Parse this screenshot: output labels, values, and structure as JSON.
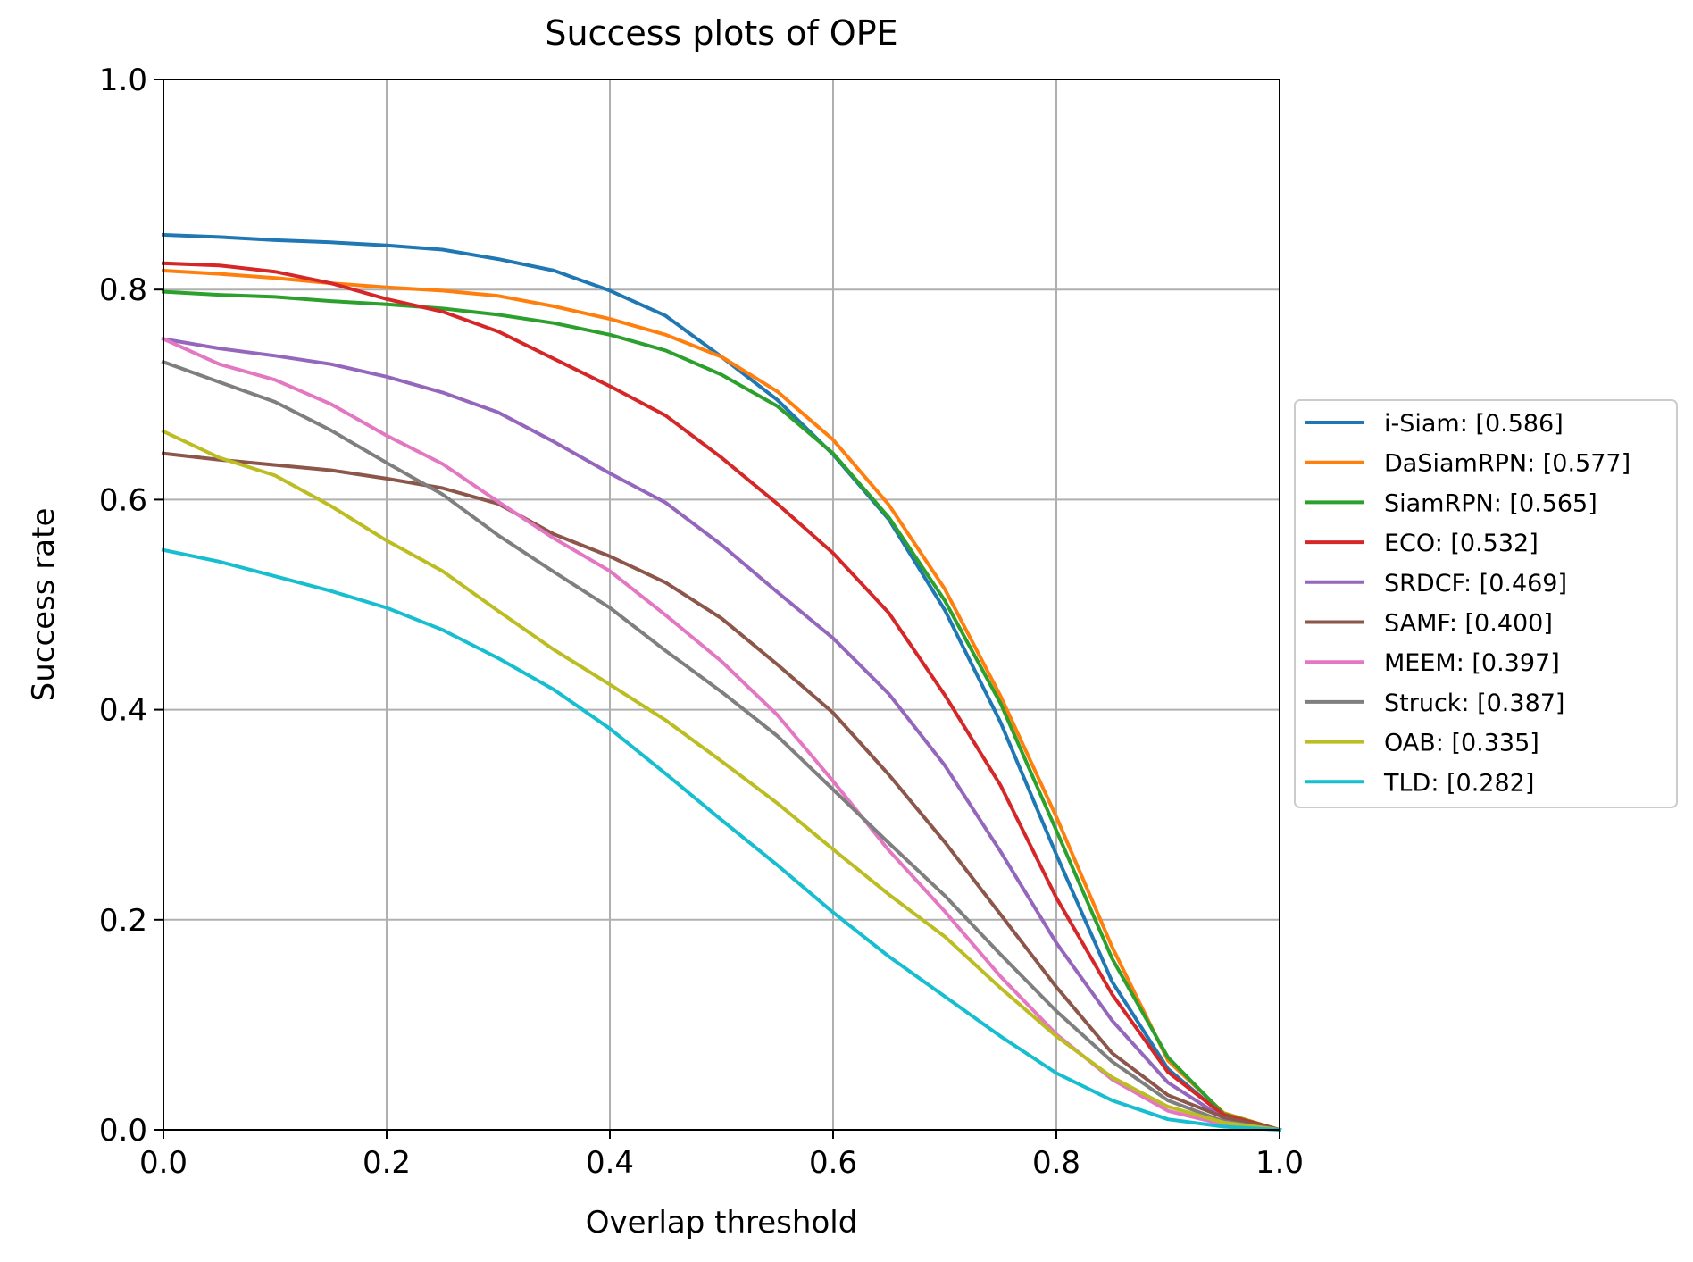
{
  "chart_data": {
    "type": "line",
    "title": "Success plots of OPE",
    "xlabel": "Overlap threshold",
    "ylabel": "Success rate",
    "xlim": [
      0.0,
      1.0
    ],
    "ylim": [
      0.0,
      1.0
    ],
    "grid": true,
    "legend_position": "right, outside plot",
    "xticks": [
      "0.0",
      "0.2",
      "0.4",
      "0.6",
      "0.8",
      "1.0"
    ],
    "yticks": [
      "0.0",
      "0.2",
      "0.4",
      "0.6",
      "0.8",
      "1.0"
    ],
    "x": [
      0.0,
      0.05,
      0.1,
      0.15,
      0.2,
      0.25,
      0.3,
      0.35,
      0.4,
      0.45,
      0.5,
      0.55,
      0.6,
      0.65,
      0.7,
      0.75,
      0.8,
      0.85,
      0.9,
      0.95,
      1.0
    ],
    "series": [
      {
        "name": "i-Siam: [0.586]",
        "color": "#1f77b4",
        "values": [
          0.852,
          0.85,
          0.847,
          0.845,
          0.842,
          0.838,
          0.829,
          0.818,
          0.799,
          0.775,
          0.736,
          0.695,
          0.643,
          0.581,
          0.495,
          0.388,
          0.262,
          0.141,
          0.058,
          0.013,
          0.0
        ]
      },
      {
        "name": "DaSiamRPN: [0.577]",
        "color": "#ff7f0e",
        "values": [
          0.818,
          0.815,
          0.811,
          0.806,
          0.802,
          0.799,
          0.794,
          0.784,
          0.772,
          0.757,
          0.736,
          0.703,
          0.657,
          0.595,
          0.515,
          0.413,
          0.298,
          0.174,
          0.066,
          0.016,
          0.0
        ]
      },
      {
        "name": "SiamRPN: [0.565]",
        "color": "#2ca02c",
        "values": [
          0.798,
          0.795,
          0.793,
          0.789,
          0.786,
          0.782,
          0.776,
          0.768,
          0.757,
          0.742,
          0.719,
          0.689,
          0.644,
          0.583,
          0.504,
          0.406,
          0.285,
          0.163,
          0.069,
          0.015,
          0.0
        ]
      },
      {
        "name": "ECO: [0.532]",
        "color": "#d62728",
        "values": [
          0.825,
          0.823,
          0.817,
          0.806,
          0.791,
          0.779,
          0.76,
          0.734,
          0.708,
          0.68,
          0.64,
          0.596,
          0.549,
          0.492,
          0.414,
          0.328,
          0.221,
          0.129,
          0.055,
          0.014,
          0.0
        ]
      },
      {
        "name": "SRDCF: [0.469]",
        "color": "#9467bd",
        "values": [
          0.753,
          0.744,
          0.737,
          0.729,
          0.717,
          0.702,
          0.683,
          0.655,
          0.625,
          0.597,
          0.557,
          0.512,
          0.468,
          0.415,
          0.347,
          0.265,
          0.178,
          0.104,
          0.045,
          0.011,
          0.0
        ]
      },
      {
        "name": "SAMF: [0.400]",
        "color": "#8c564b",
        "values": [
          0.644,
          0.638,
          0.633,
          0.628,
          0.62,
          0.611,
          0.596,
          0.567,
          0.546,
          0.521,
          0.487,
          0.443,
          0.397,
          0.338,
          0.274,
          0.205,
          0.136,
          0.073,
          0.033,
          0.012,
          0.0
        ]
      },
      {
        "name": "MEEM: [0.397]",
        "color": "#e377c2",
        "values": [
          0.753,
          0.729,
          0.714,
          0.691,
          0.661,
          0.634,
          0.598,
          0.563,
          0.532,
          0.49,
          0.446,
          0.395,
          0.332,
          0.266,
          0.208,
          0.146,
          0.091,
          0.048,
          0.018,
          0.005,
          0.0
        ]
      },
      {
        "name": "Struck: [0.387]",
        "color": "#7f7f7f",
        "values": [
          0.731,
          0.712,
          0.693,
          0.666,
          0.635,
          0.605,
          0.566,
          0.531,
          0.497,
          0.456,
          0.417,
          0.375,
          0.324,
          0.273,
          0.223,
          0.167,
          0.113,
          0.065,
          0.028,
          0.008,
          0.0
        ]
      },
      {
        "name": "OAB: [0.335]",
        "color": "#bcbd22",
        "values": [
          0.665,
          0.64,
          0.623,
          0.594,
          0.561,
          0.532,
          0.494,
          0.457,
          0.424,
          0.39,
          0.351,
          0.311,
          0.267,
          0.224,
          0.184,
          0.135,
          0.089,
          0.05,
          0.022,
          0.007,
          0.0
        ]
      },
      {
        "name": "TLD: [0.282]",
        "color": "#17becf",
        "values": [
          0.552,
          0.541,
          0.527,
          0.513,
          0.497,
          0.476,
          0.449,
          0.419,
          0.382,
          0.339,
          0.295,
          0.252,
          0.207,
          0.165,
          0.127,
          0.089,
          0.054,
          0.028,
          0.01,
          0.003,
          0.0
        ]
      }
    ]
  }
}
